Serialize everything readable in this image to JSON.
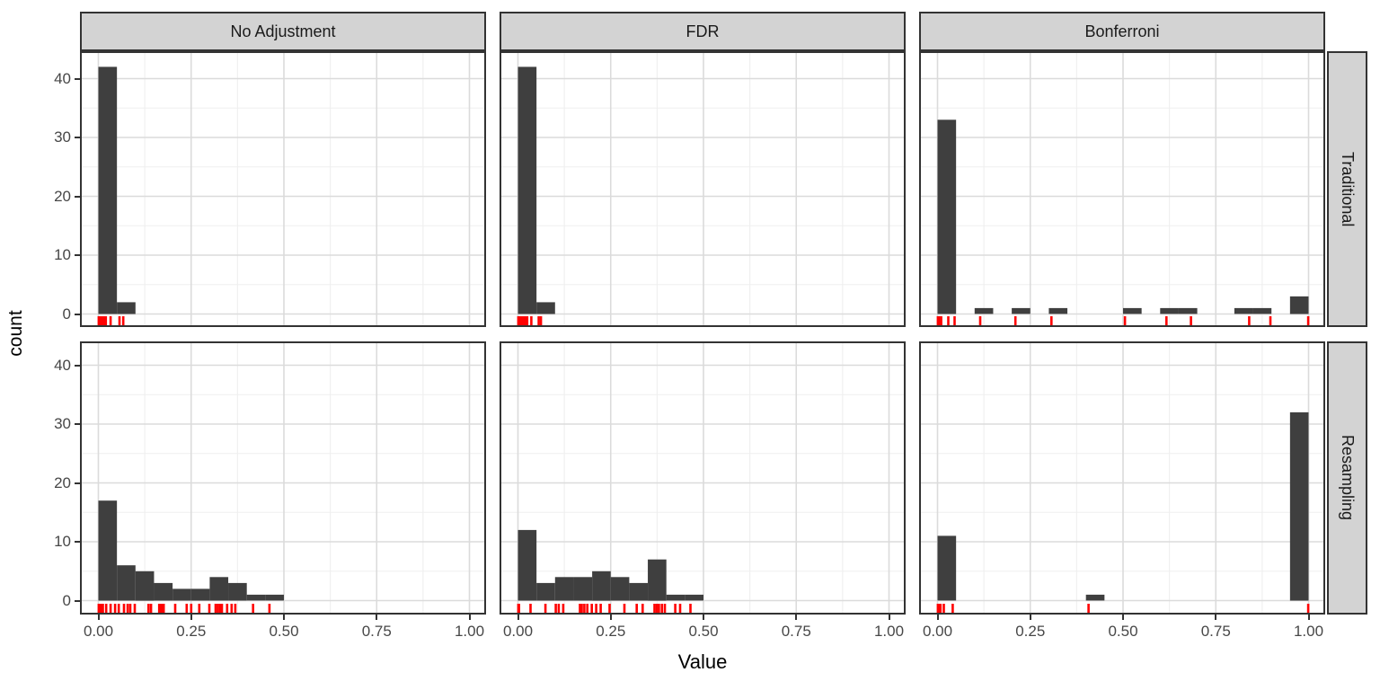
{
  "figure": {
    "x_title": "Value",
    "y_title": "count"
  },
  "chart_data": {
    "type": "bar",
    "subtype": "faceted-histogram-with-rug",
    "title": "",
    "xlabel": "Value",
    "ylabel": "count",
    "facet_cols": [
      "No Adjustment",
      "FDR",
      "Bonferroni"
    ],
    "facet_rows": [
      "Traditional",
      "Resampling"
    ],
    "binwidth": 0.05,
    "xlim": [
      0,
      1
    ],
    "ylim": [
      0,
      44
    ],
    "grid": true,
    "legend": "none",
    "x_ticks": [
      {
        "v": 0.0,
        "label": "0.00"
      },
      {
        "v": 0.25,
        "label": "0.25"
      },
      {
        "v": 0.5,
        "label": "0.50"
      },
      {
        "v": 0.75,
        "label": "0.75"
      },
      {
        "v": 1.0,
        "label": "1.00"
      }
    ],
    "y_ticks": [
      {
        "v": 0,
        "label": "0"
      },
      {
        "v": 10,
        "label": "10"
      },
      {
        "v": 20,
        "label": "20"
      },
      {
        "v": 30,
        "label": "30"
      },
      {
        "v": 40,
        "label": "40"
      }
    ],
    "x_minor": [
      0.125,
      0.375,
      0.625,
      0.875
    ],
    "y_minor": [
      5,
      15,
      25,
      35
    ],
    "colors": {
      "bar": "#3f3f3f",
      "rug": "#ff0000",
      "strip_bg": "#d3d3d3",
      "panel_border": "#333333",
      "grid_major": "#dbdbdb",
      "grid_minor": "#efefef",
      "tick_text": "#474747"
    },
    "panels": [
      {
        "row": "Traditional",
        "col": "No Adjustment",
        "bins": [
          [
            0.0,
            42
          ],
          [
            0.05,
            2
          ]
        ],
        "rug": [
          0.001,
          0.002,
          0.003,
          0.004,
          0.005,
          0.006,
          0.007,
          0.008,
          0.01,
          0.012,
          0.014,
          0.016,
          0.018,
          0.02,
          0.033,
          0.057,
          0.067
        ]
      },
      {
        "row": "Traditional",
        "col": "FDR",
        "bins": [
          [
            0.0,
            42
          ],
          [
            0.05,
            2
          ]
        ],
        "rug": [
          0.001,
          0.002,
          0.003,
          0.004,
          0.005,
          0.006,
          0.007,
          0.008,
          0.01,
          0.012,
          0.015,
          0.018,
          0.021,
          0.025,
          0.036,
          0.056,
          0.062
        ]
      },
      {
        "row": "Traditional",
        "col": "Bonferroni",
        "bins": [
          [
            0.0,
            33
          ],
          [
            0.1,
            1
          ],
          [
            0.2,
            1
          ],
          [
            0.3,
            1
          ],
          [
            0.5,
            1
          ],
          [
            0.6,
            1
          ],
          [
            0.65,
            1
          ],
          [
            0.8,
            1
          ],
          [
            0.85,
            1
          ],
          [
            0.95,
            3
          ]
        ],
        "rug": [
          0.001,
          0.002,
          0.003,
          0.004,
          0.006,
          0.008,
          0.01,
          0.029,
          0.046,
          0.115,
          0.21,
          0.307,
          0.505,
          0.617,
          0.683,
          0.84,
          0.897,
          0.999
        ]
      },
      {
        "row": "Resampling",
        "col": "No Adjustment",
        "bins": [
          [
            0.0,
            17
          ],
          [
            0.05,
            6
          ],
          [
            0.1,
            5
          ],
          [
            0.15,
            3
          ],
          [
            0.2,
            2
          ],
          [
            0.25,
            2
          ],
          [
            0.3,
            4
          ],
          [
            0.35,
            3
          ],
          [
            0.4,
            1
          ],
          [
            0.45,
            1
          ]
        ],
        "rug": [
          0.001,
          0.004,
          0.008,
          0.012,
          0.021,
          0.033,
          0.045,
          0.055,
          0.069,
          0.079,
          0.086,
          0.098,
          0.135,
          0.142,
          0.164,
          0.17,
          0.176,
          0.207,
          0.238,
          0.25,
          0.272,
          0.299,
          0.316,
          0.322,
          0.328,
          0.333,
          0.347,
          0.359,
          0.369,
          0.417,
          0.461
        ]
      },
      {
        "row": "Resampling",
        "col": "FDR",
        "bins": [
          [
            0.0,
            12
          ],
          [
            0.05,
            3
          ],
          [
            0.1,
            4
          ],
          [
            0.15,
            4
          ],
          [
            0.2,
            5
          ],
          [
            0.25,
            4
          ],
          [
            0.3,
            3
          ],
          [
            0.35,
            7
          ],
          [
            0.4,
            1
          ],
          [
            0.45,
            1
          ]
        ],
        "rug": [
          0.001,
          0.003,
          0.034,
          0.074,
          0.102,
          0.11,
          0.122,
          0.167,
          0.172,
          0.179,
          0.187,
          0.199,
          0.211,
          0.223,
          0.247,
          0.287,
          0.32,
          0.336,
          0.368,
          0.374,
          0.38,
          0.388,
          0.396,
          0.424,
          0.437,
          0.465
        ]
      },
      {
        "row": "Resampling",
        "col": "Bonferroni",
        "bins": [
          [
            0.0,
            11
          ],
          [
            0.4,
            1
          ],
          [
            0.95,
            32
          ]
        ],
        "rug": [
          0.001,
          0.004,
          0.008,
          0.017,
          0.041,
          0.407,
          0.999
        ]
      }
    ]
  }
}
